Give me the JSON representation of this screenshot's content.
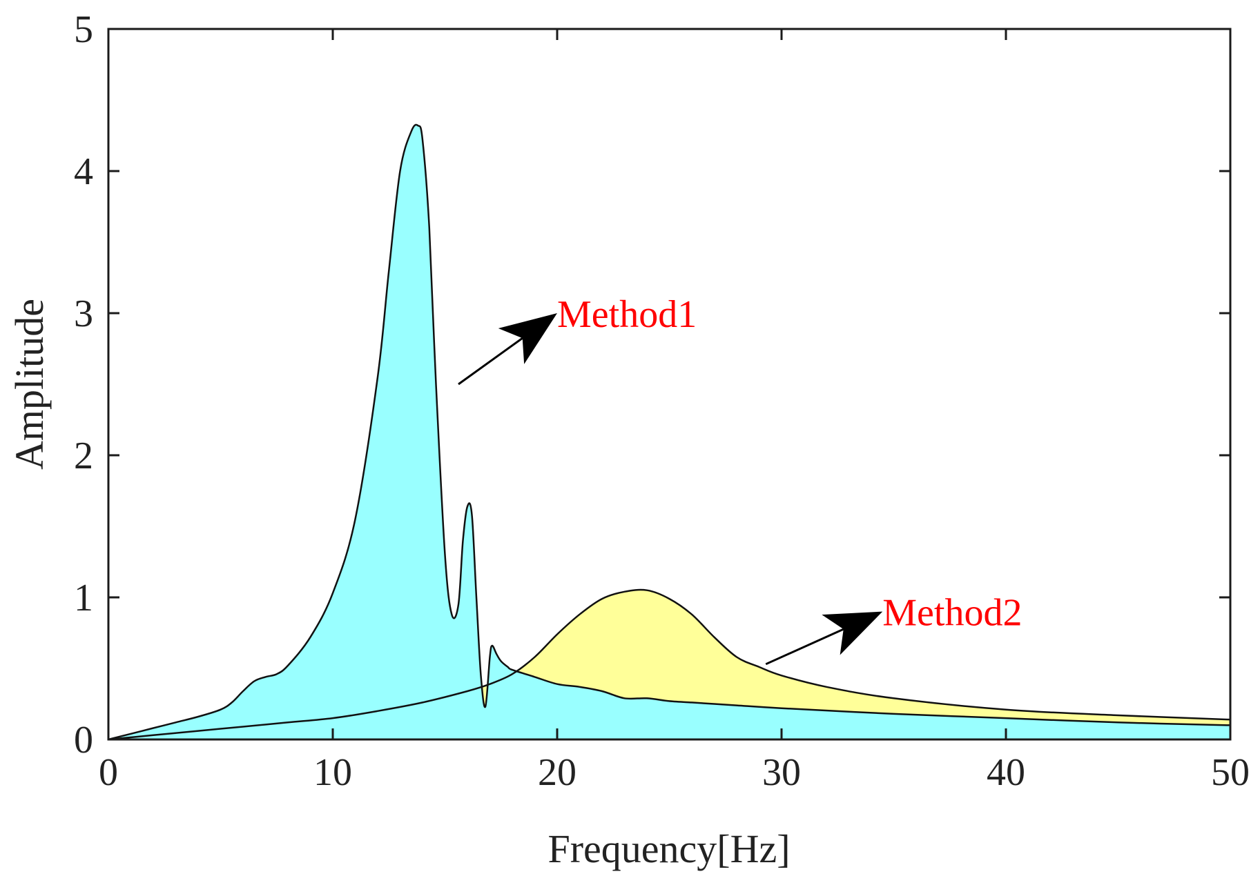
{
  "chart_data": {
    "type": "area",
    "title": "",
    "xlabel": "Frequency[Hz]",
    "ylabel": "Amplitude",
    "xlim": [
      0,
      50
    ],
    "ylim": [
      0,
      5
    ],
    "xticks": [
      0,
      10,
      20,
      30,
      40,
      50
    ],
    "yticks": [
      0,
      1,
      2,
      3,
      4,
      5
    ],
    "xtick_labels": [
      "0",
      "10",
      "20",
      "30",
      "40",
      "50"
    ],
    "ytick_labels": [
      "0",
      "1",
      "2",
      "3",
      "4",
      "5"
    ],
    "grid": false,
    "series": [
      {
        "name": "Method1",
        "fill": "#99ffff",
        "x": [
          0,
          1,
          2,
          3,
          4,
          5,
          5.5,
          6,
          6.5,
          7,
          7.5,
          8,
          9,
          10,
          11,
          12,
          12.5,
          13,
          13.5,
          13.8,
          14,
          14.3,
          14.6,
          15,
          15.3,
          15.6,
          15.8,
          16,
          16.2,
          16.4,
          16.6,
          16.8,
          17,
          17.1,
          17.3,
          17.5,
          17.8,
          18,
          19,
          20,
          21,
          22,
          23,
          24,
          25,
          26,
          27,
          28,
          30,
          35,
          40,
          45,
          50
        ],
        "y": [
          0,
          0.04,
          0.08,
          0.12,
          0.16,
          0.21,
          0.26,
          0.34,
          0.41,
          0.44,
          0.46,
          0.52,
          0.72,
          1.03,
          1.55,
          2.55,
          3.3,
          4.0,
          4.28,
          4.32,
          4.22,
          3.6,
          2.5,
          1.3,
          0.88,
          0.95,
          1.4,
          1.64,
          1.58,
          1.0,
          0.45,
          0.23,
          0.58,
          0.66,
          0.6,
          0.55,
          0.51,
          0.49,
          0.44,
          0.39,
          0.37,
          0.34,
          0.29,
          0.29,
          0.27,
          0.26,
          0.25,
          0.24,
          0.22,
          0.18,
          0.15,
          0.12,
          0.1
        ]
      },
      {
        "name": "Method2",
        "fill": "#ffff99",
        "x": [
          0,
          2,
          4,
          6,
          8,
          10,
          12,
          14,
          16,
          17,
          18,
          19,
          20,
          21,
          22,
          23,
          24,
          25,
          26,
          27,
          28,
          29,
          30,
          32,
          35,
          40,
          45,
          50
        ],
        "y": [
          0,
          0.03,
          0.06,
          0.09,
          0.12,
          0.15,
          0.2,
          0.26,
          0.34,
          0.39,
          0.46,
          0.58,
          0.74,
          0.88,
          0.99,
          1.04,
          1.05,
          0.99,
          0.88,
          0.72,
          0.58,
          0.51,
          0.45,
          0.37,
          0.29,
          0.21,
          0.17,
          0.14
        ]
      }
    ],
    "annotations": [
      {
        "text": "Method1",
        "color": "#ff0000",
        "tail": [
          15.6,
          2.5
        ],
        "head": [
          20,
          3.0
        ],
        "text_at": [
          20,
          3.0
        ]
      },
      {
        "text": "Method2",
        "color": "#ff0000",
        "tail": [
          29.3,
          0.53
        ],
        "head": [
          34.5,
          0.9
        ],
        "text_at": [
          34.5,
          0.9
        ]
      }
    ]
  }
}
